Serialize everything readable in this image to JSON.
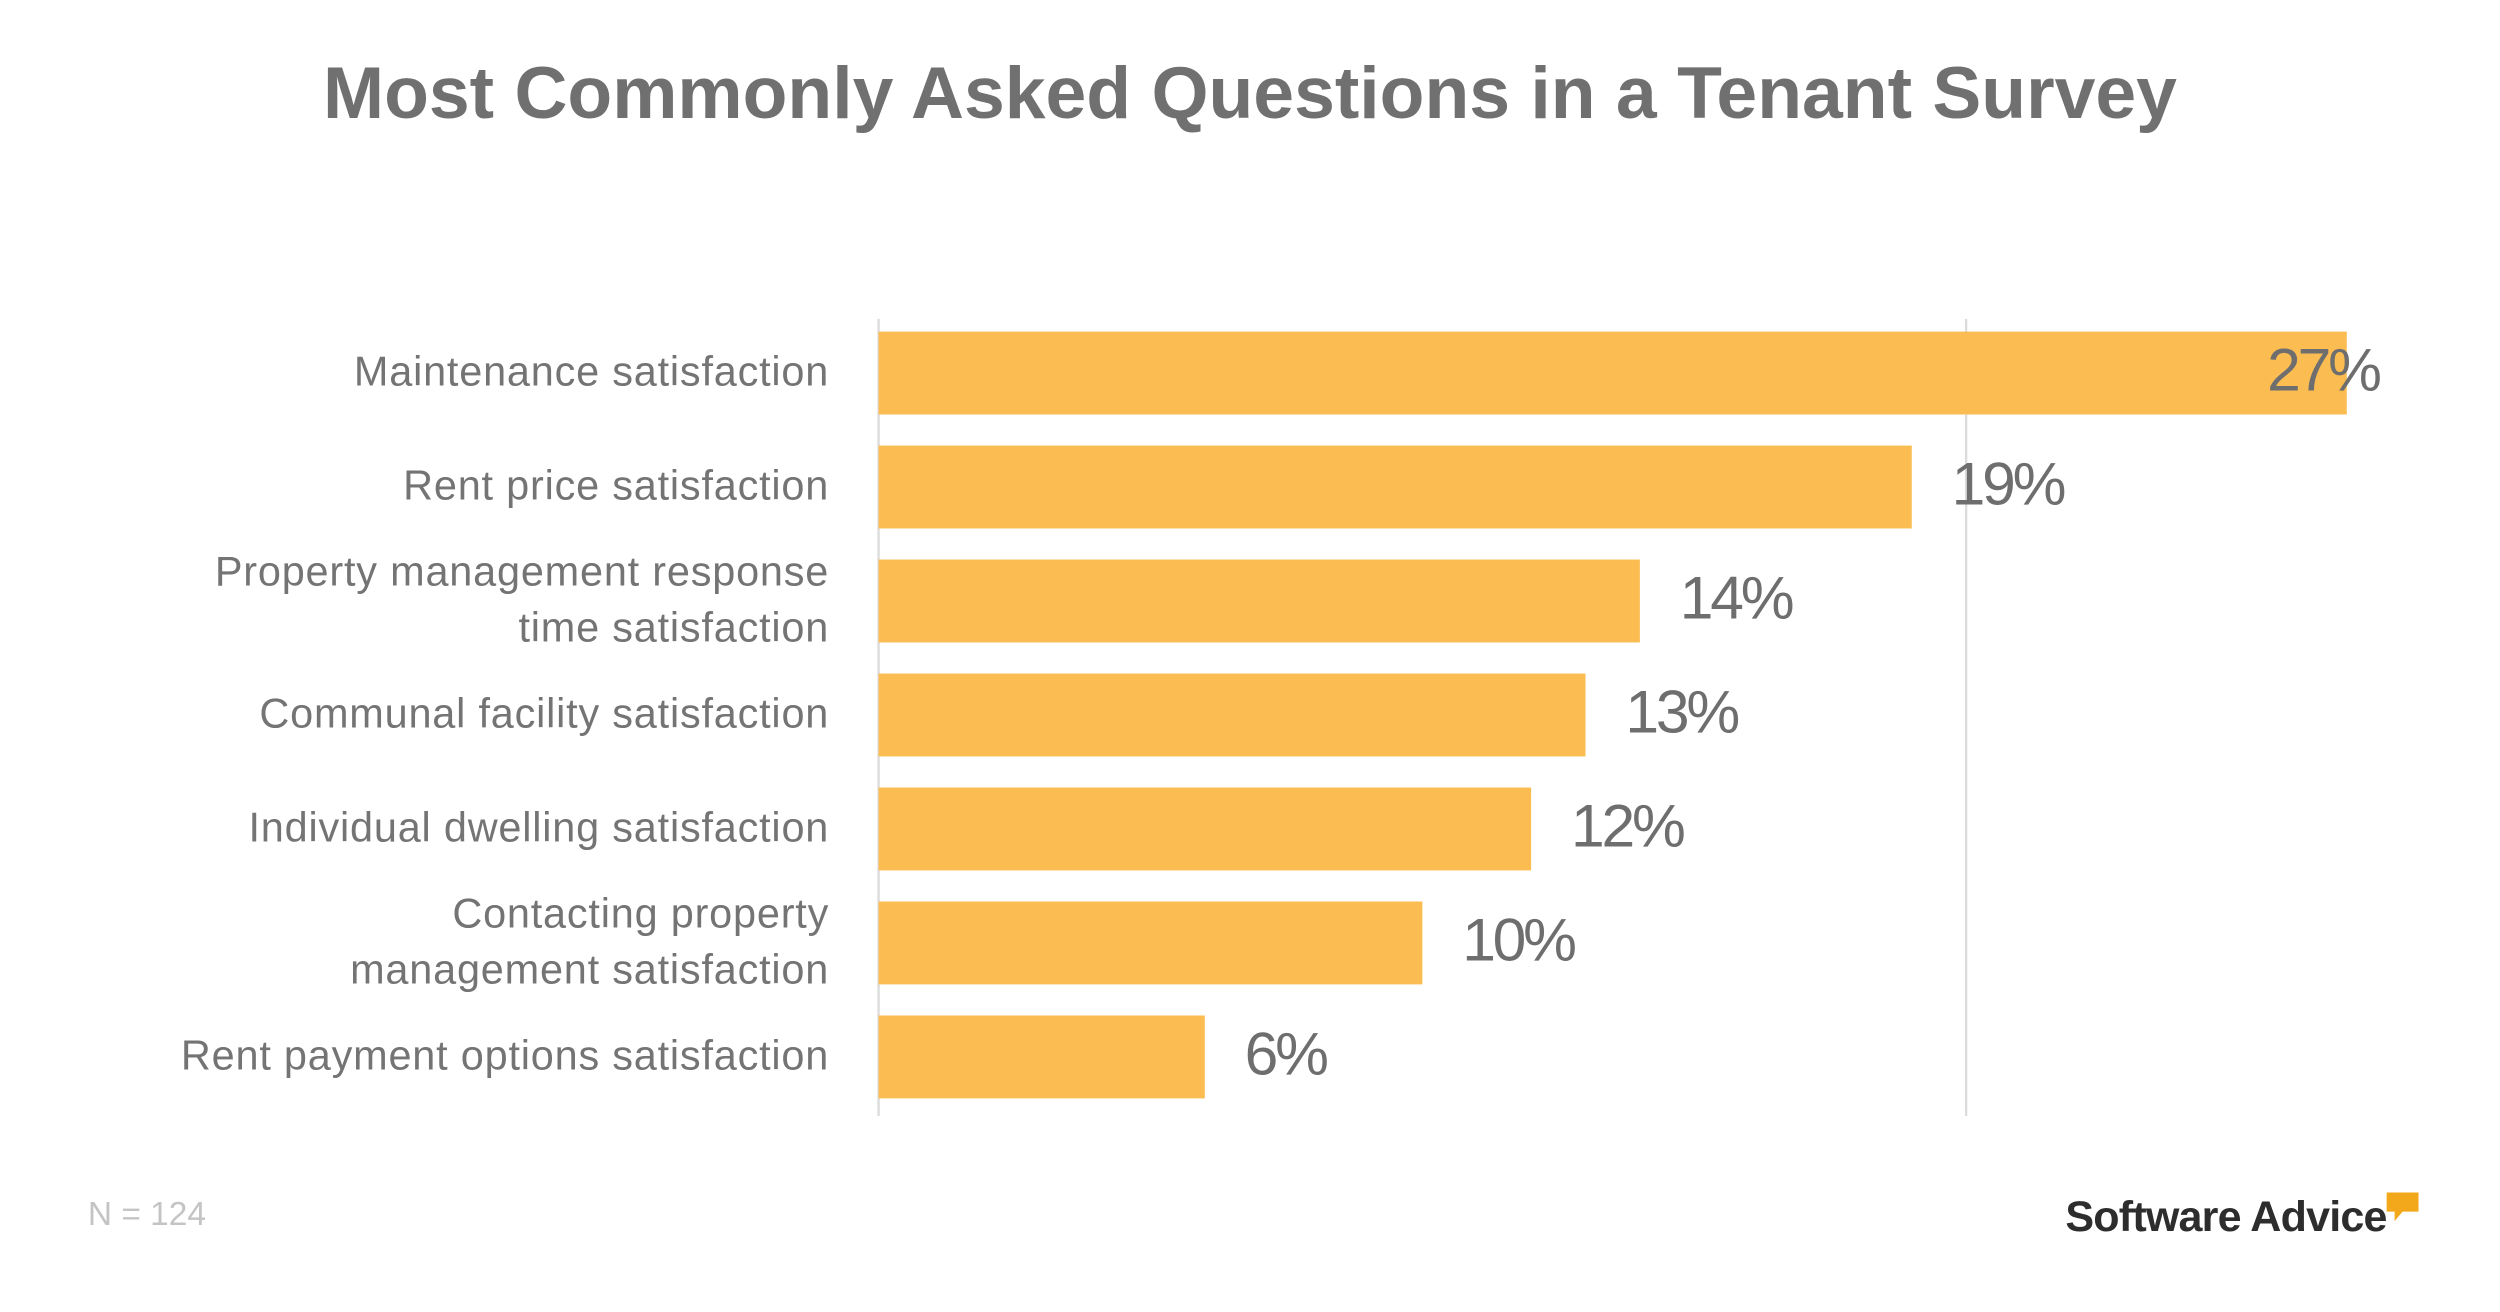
{
  "chart_data": {
    "type": "barh",
    "title": "Most Commonly Asked Questions in a Tenant Survey",
    "categories": [
      "Maintenance satisfaction",
      "Rent price satisfaction",
      "Property management response\ntime satisfaction",
      "Communal facility satisfaction",
      "Individual dwelling satisfaction",
      "Contacting property\nmanagement satisfaction",
      "Rent payment options satisfaction"
    ],
    "values": [
      27,
      19,
      14,
      13,
      12,
      10,
      6
    ],
    "value_labels": [
      "27%",
      "19%",
      "14%",
      "13%",
      "12%",
      "10%",
      "6%"
    ],
    "color": "#fbbc52",
    "xlim": [
      0,
      27
    ],
    "xticks": [
      0,
      20
    ],
    "grid": true,
    "tick_labels": false
  },
  "footnote": "N = 124",
  "logo": "Software Advice"
}
